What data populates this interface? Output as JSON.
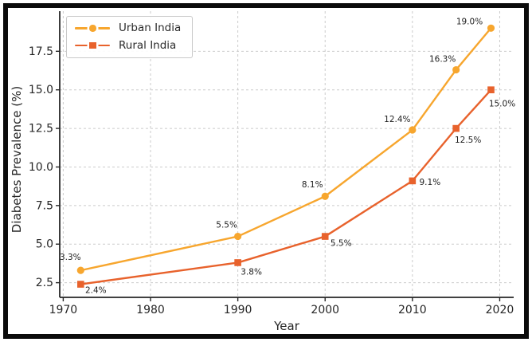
{
  "chart_data": {
    "type": "line",
    "title": "",
    "xlabel": "Year",
    "ylabel": "Diabetes Prevalence (%)",
    "x": [
      1972,
      1990,
      2000,
      2010,
      2015,
      2019
    ],
    "series": [
      {
        "name": "Urban India",
        "color": "#F7A62E",
        "marker": "circle",
        "values": [
          3.3,
          5.5,
          8.1,
          12.4,
          16.3,
          19.0
        ],
        "labels": [
          "3.3%",
          "5.5%",
          "8.1%",
          "12.4%",
          "16.3%",
          "19.0%"
        ],
        "label_offsets": [
          [
            -13,
            -13
          ],
          [
            -14,
            -11
          ],
          [
            -16,
            -11
          ],
          [
            -19,
            -10
          ],
          [
            -17,
            -10
          ],
          [
            -27,
            -5
          ]
        ]
      },
      {
        "name": "Rural India",
        "color": "#E8622C",
        "marker": "square",
        "values": [
          2.4,
          3.8,
          5.5,
          9.1,
          12.5,
          15.0
        ],
        "labels": [
          "2.4%",
          "3.8%",
          "5.5%",
          "9.1%",
          "12.5%",
          "15.0%"
        ],
        "label_offsets": [
          [
            19,
            11
          ],
          [
            17,
            15
          ],
          [
            20,
            12
          ],
          [
            22,
            5
          ],
          [
            15,
            18
          ],
          [
            14,
            21
          ]
        ]
      }
    ],
    "xticks": {
      "values": [
        1970,
        1980,
        1990,
        2000,
        2010,
        2020
      ],
      "labels": [
        "1970",
        "1980",
        "1990",
        "2000",
        "2010",
        "2020"
      ]
    },
    "yticks": {
      "values": [
        2.5,
        5.0,
        7.5,
        10.0,
        12.5,
        15.0,
        17.5
      ],
      "labels": [
        "2.5",
        "5.0",
        "7.5",
        "10.0",
        "12.5",
        "15.0",
        "17.5"
      ]
    },
    "xlim": [
      1969.6,
      2021.6
    ],
    "ylim": [
      1.55,
      20.1
    ],
    "grid": {
      "on": true,
      "color": "#cbcbcb",
      "dash": "3,3"
    },
    "axis_color": "#262626",
    "annotation_color": "#1f1f1f",
    "legend": {
      "position": "upper-left",
      "items": [
        "Urban India",
        "Rural India"
      ]
    }
  }
}
